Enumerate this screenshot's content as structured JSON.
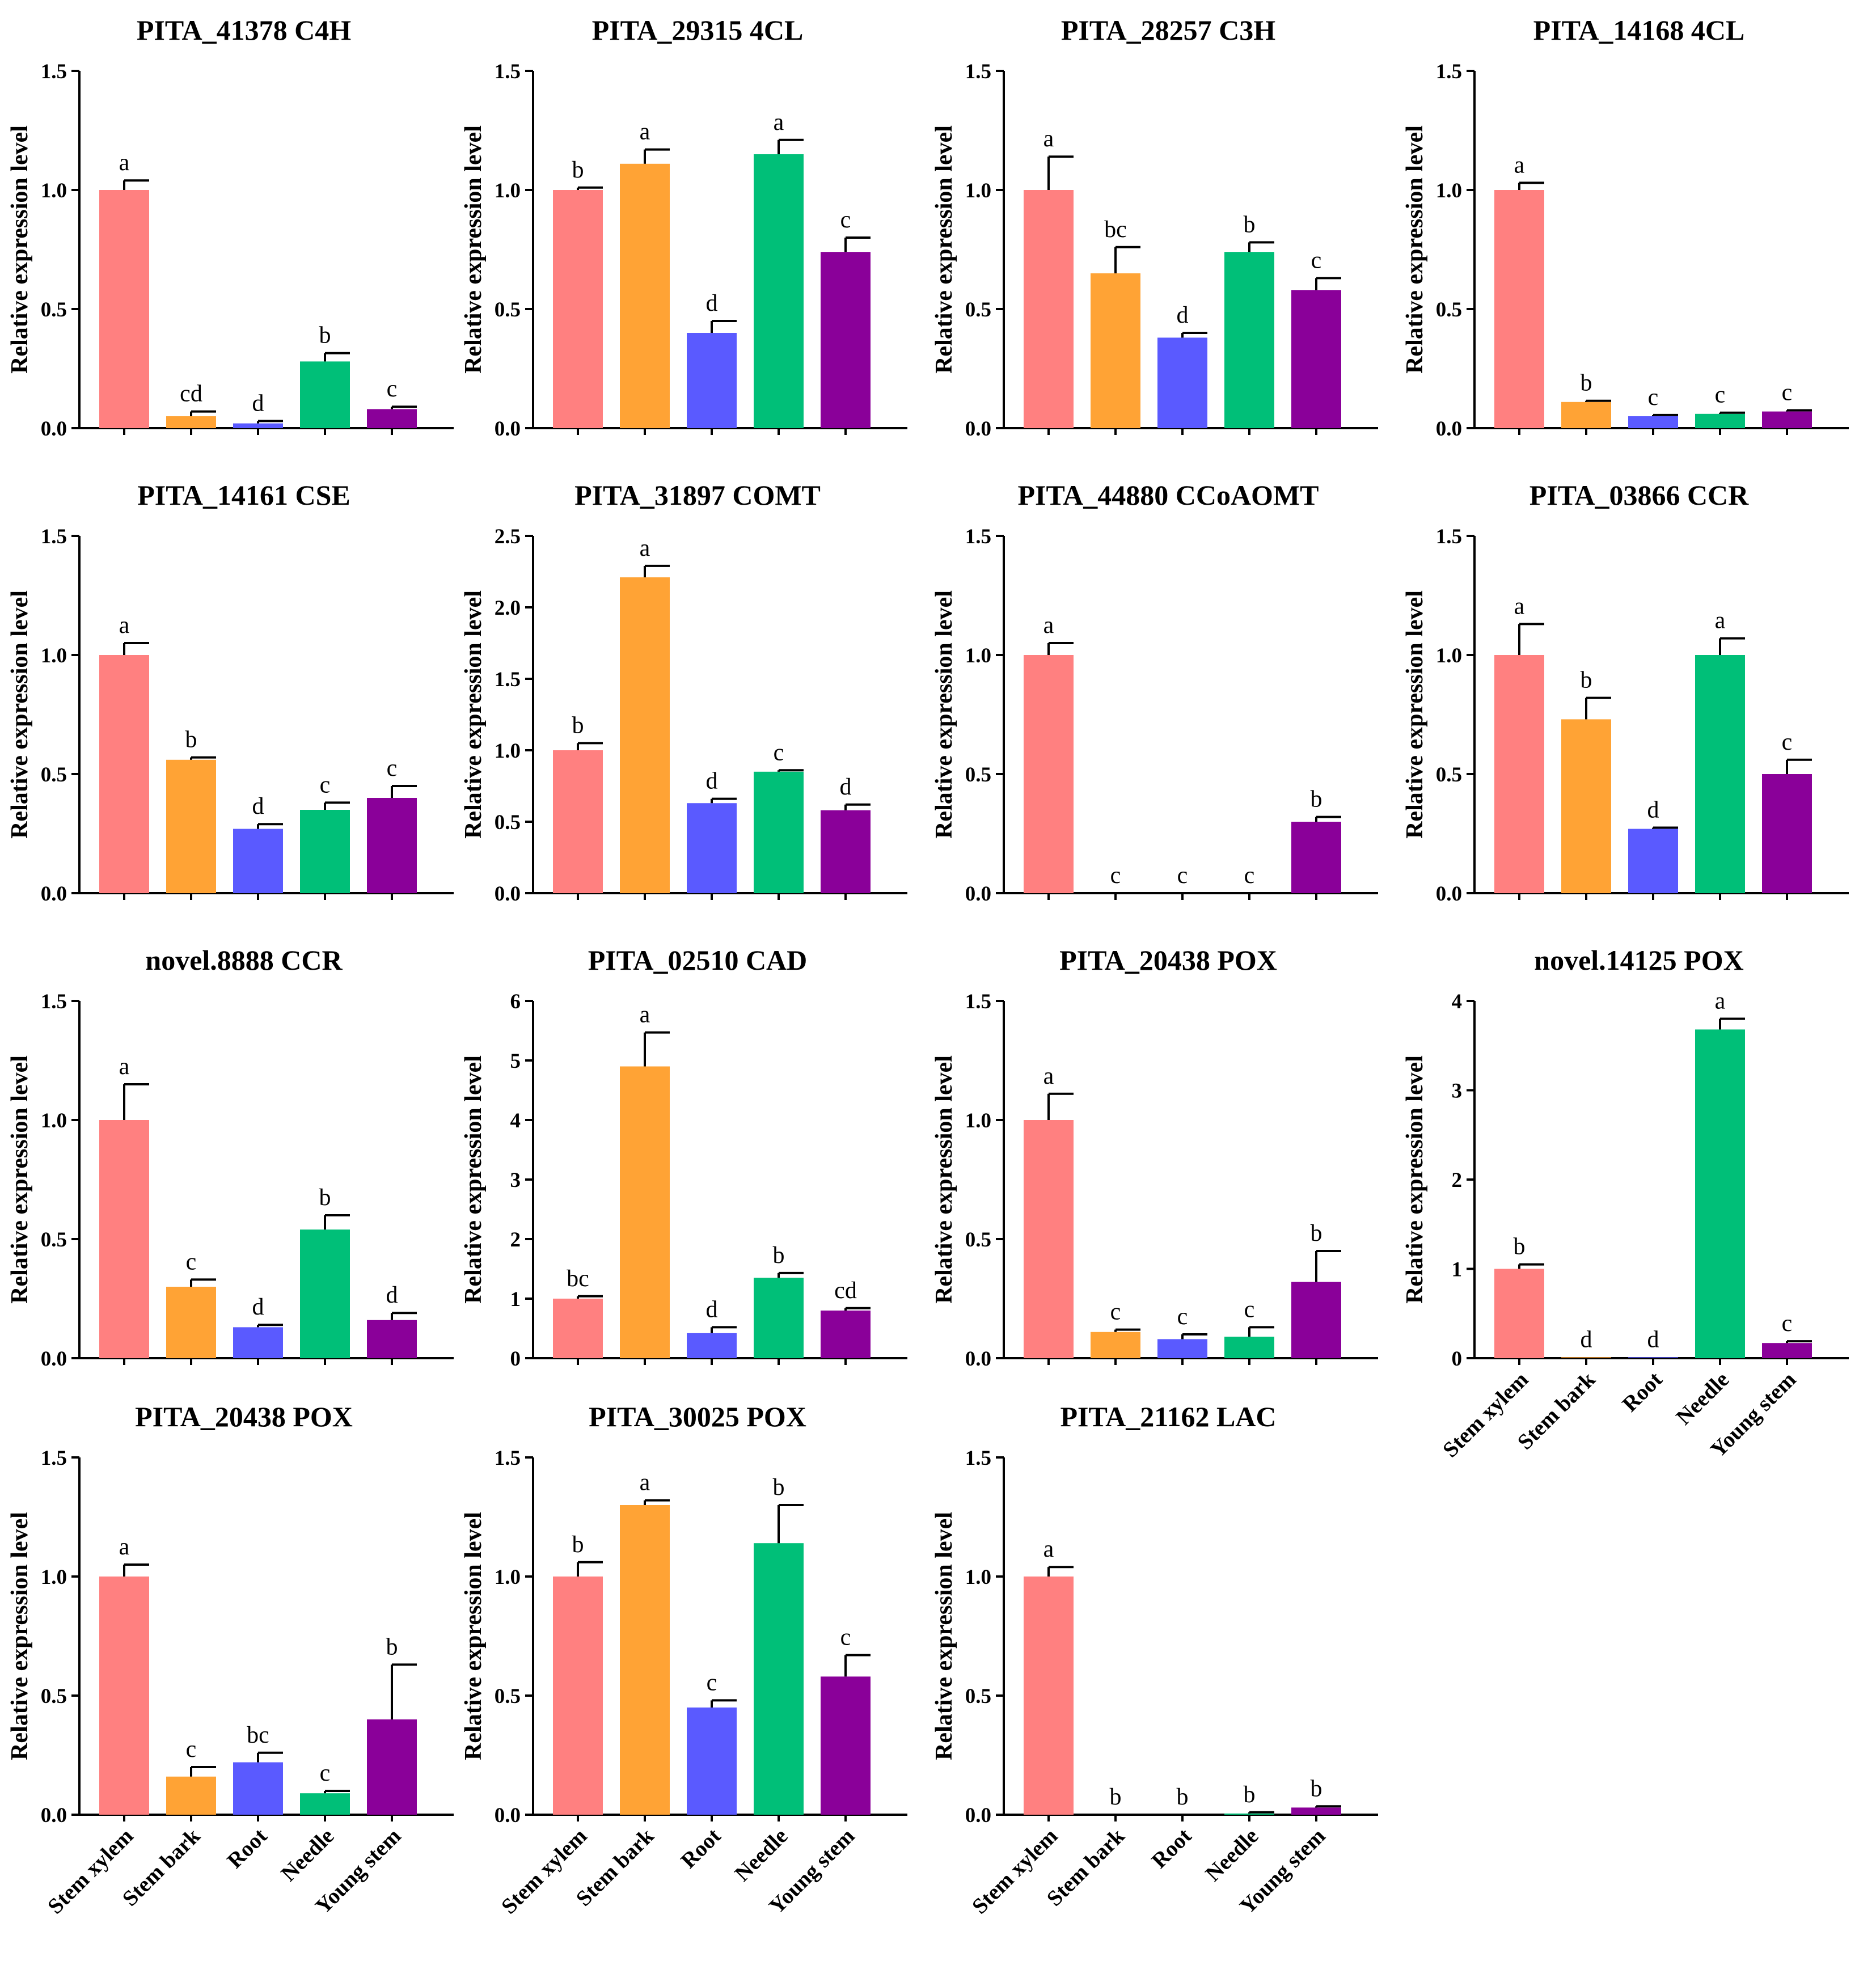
{
  "figure": {
    "categories": [
      "Stem xylem",
      "Stem bark",
      "Root",
      "Needle",
      "Young stem"
    ],
    "colors": [
      "#FF8080",
      "#FFA335",
      "#5A5AFF",
      "#00BF78",
      "#8A0099"
    ]
  },
  "chart_data": [
    {
      "type": "bar",
      "title": "PITA_41378 C4H",
      "ylabel": "Relative expression level",
      "ylim": [
        0,
        1.5
      ],
      "ticks": [
        "0.0",
        "0.5",
        "1.0",
        "1.5"
      ],
      "values": [
        1.0,
        0.05,
        0.02,
        0.28,
        0.08
      ],
      "errors": [
        0.04,
        0.02,
        0.01,
        0.035,
        0.01
      ],
      "letters": [
        "a",
        "cd",
        "d",
        "b",
        "c"
      ]
    },
    {
      "type": "bar",
      "title": "PITA_29315 4CL",
      "ylabel": "Relative expression level",
      "ylim": [
        0,
        1.5
      ],
      "ticks": [
        "0.0",
        "0.5",
        "1.0",
        "1.5"
      ],
      "values": [
        1.0,
        1.11,
        0.4,
        1.15,
        0.74
      ],
      "errors": [
        0.01,
        0.06,
        0.05,
        0.06,
        0.06
      ],
      "letters": [
        "b",
        "a",
        "d",
        "a",
        "c"
      ]
    },
    {
      "type": "bar",
      "title": "PITA_28257 C3H",
      "ylabel": "Relative expression level",
      "ylim": [
        0,
        1.5
      ],
      "ticks": [
        "0.0",
        "0.5",
        "1.0",
        "1.5"
      ],
      "values": [
        1.0,
        0.65,
        0.38,
        0.74,
        0.58
      ],
      "errors": [
        0.14,
        0.11,
        0.02,
        0.04,
        0.05
      ],
      "letters": [
        "a",
        "bc",
        "d",
        "b",
        "c"
      ]
    },
    {
      "type": "bar",
      "title": "PITA_14168 4CL",
      "ylabel": "Relative expression level",
      "ylim": [
        0,
        1.5
      ],
      "ticks": [
        "0.0",
        "0.5",
        "1.0",
        "1.5"
      ],
      "values": [
        1.0,
        0.11,
        0.05,
        0.06,
        0.07
      ],
      "errors": [
        0.03,
        0.005,
        0.005,
        0.005,
        0.005
      ],
      "letters": [
        "a",
        "b",
        "c",
        "c",
        "c"
      ]
    },
    {
      "type": "bar",
      "title": "PITA_14161 CSE",
      "ylabel": "Relative expression level",
      "ylim": [
        0,
        1.5
      ],
      "ticks": [
        "0.0",
        "0.5",
        "1.0",
        "1.5"
      ],
      "values": [
        1.0,
        0.56,
        0.27,
        0.35,
        0.4
      ],
      "errors": [
        0.05,
        0.01,
        0.02,
        0.03,
        0.05
      ],
      "letters": [
        "a",
        "b",
        "d",
        "c",
        "c"
      ]
    },
    {
      "type": "bar",
      "title": "PITA_31897 COMT",
      "ylabel": "Relative expression level",
      "ylim": [
        0,
        2.5
      ],
      "ticks": [
        "0.0",
        "0.5",
        "1.0",
        "1.5",
        "2.0",
        "2.5"
      ],
      "values": [
        1.0,
        2.21,
        0.63,
        0.85,
        0.58
      ],
      "errors": [
        0.05,
        0.08,
        0.03,
        0.01,
        0.04
      ],
      "letters": [
        "b",
        "a",
        "d",
        "c",
        "d"
      ]
    },
    {
      "type": "bar",
      "title": "PITA_44880 CCoAOMT",
      "ylabel": "Relative expression level",
      "ylim": [
        0,
        1.5
      ],
      "ticks": [
        "0.0",
        "0.5",
        "1.0",
        "1.5"
      ],
      "values": [
        1.0,
        0.0,
        0.0,
        0.0,
        0.3
      ],
      "errors": [
        0.05,
        0,
        0,
        0,
        0.02
      ],
      "letters": [
        "a",
        "c",
        "c",
        "c",
        "b"
      ]
    },
    {
      "type": "bar",
      "title": "PITA_03866 CCR",
      "ylabel": "Relative expression level",
      "ylim": [
        0,
        1.5
      ],
      "ticks": [
        "0.0",
        "0.5",
        "1.0",
        "1.5"
      ],
      "values": [
        1.0,
        0.73,
        0.27,
        1.0,
        0.5
      ],
      "errors": [
        0.13,
        0.09,
        0.005,
        0.07,
        0.06
      ],
      "letters": [
        "a",
        "b",
        "d",
        "a",
        "c"
      ]
    },
    {
      "type": "bar",
      "title": "novel.8888 CCR",
      "ylabel": "Relative expression level",
      "ylim": [
        0,
        1.5
      ],
      "ticks": [
        "0.0",
        "0.5",
        "1.0",
        "1.5"
      ],
      "values": [
        1.0,
        0.3,
        0.13,
        0.54,
        0.16
      ],
      "errors": [
        0.15,
        0.03,
        0.01,
        0.06,
        0.03
      ],
      "letters": [
        "a",
        "c",
        "d",
        "b",
        "d"
      ]
    },
    {
      "type": "bar",
      "title": "PITA_02510 CAD",
      "ylabel": "Relative expression level",
      "ylim": [
        0,
        6
      ],
      "ticks": [
        "0",
        "1",
        "2",
        "3",
        "4",
        "5",
        "6"
      ],
      "values": [
        1.0,
        4.9,
        0.42,
        1.35,
        0.8
      ],
      "errors": [
        0.04,
        0.57,
        0.1,
        0.08,
        0.04
      ],
      "letters": [
        "bc",
        "a",
        "d",
        "b",
        "cd"
      ]
    },
    {
      "type": "bar",
      "title": "PITA_20438 POX",
      "ylabel": "Relative expression level",
      "ylim": [
        0,
        1.5
      ],
      "ticks": [
        "0.0",
        "0.5",
        "1.0",
        "1.5"
      ],
      "values": [
        1.0,
        0.11,
        0.08,
        0.09,
        0.32
      ],
      "errors": [
        0.11,
        0.01,
        0.02,
        0.04,
        0.13
      ],
      "letters": [
        "a",
        "c",
        "c",
        "c",
        "b"
      ]
    },
    {
      "type": "bar",
      "title": "novel.14125 POX",
      "ylabel": "Relative expression level",
      "ylim": [
        0,
        4
      ],
      "ticks": [
        "0",
        "1",
        "2",
        "3",
        "4"
      ],
      "values": [
        1.0,
        0.01,
        0.01,
        3.68,
        0.17
      ],
      "errors": [
        0.05,
        0,
        0,
        0.12,
        0.02
      ],
      "letters": [
        "b",
        "d",
        "d",
        "a",
        "c"
      ]
    },
    {
      "type": "bar",
      "title": "PITA_20438 POX",
      "ylabel": "Relative expression level",
      "ylim": [
        0,
        1.5
      ],
      "ticks": [
        "0.0",
        "0.5",
        "1.0",
        "1.5"
      ],
      "values": [
        1.0,
        0.16,
        0.22,
        0.09,
        0.4
      ],
      "errors": [
        0.05,
        0.04,
        0.04,
        0.01,
        0.23
      ],
      "letters": [
        "a",
        "c",
        "bc",
        "c",
        "b"
      ]
    },
    {
      "type": "bar",
      "title": "PITA_30025 POX",
      "ylabel": "Relative expression level",
      "ylim": [
        0,
        1.5
      ],
      "ticks": [
        "0.0",
        "0.5",
        "1.0",
        "1.5"
      ],
      "values": [
        1.0,
        1.3,
        0.45,
        1.14,
        0.58
      ],
      "errors": [
        0.06,
        0.02,
        0.03,
        0.16,
        0.09
      ],
      "letters": [
        "b",
        "a",
        "c",
        "b",
        "c"
      ]
    },
    {
      "type": "bar",
      "title": "PITA_21162 LAC",
      "ylabel": "Relative expression level",
      "ylim": [
        0,
        1.5
      ],
      "ticks": [
        "0.0",
        "0.5",
        "1.0",
        "1.5"
      ],
      "values": [
        1.0,
        0.0,
        0.0,
        0.005,
        0.03
      ],
      "errors": [
        0.04,
        0,
        0,
        0.005,
        0.005
      ],
      "letters": [
        "a",
        "b",
        "b",
        "b",
        "b"
      ]
    }
  ]
}
